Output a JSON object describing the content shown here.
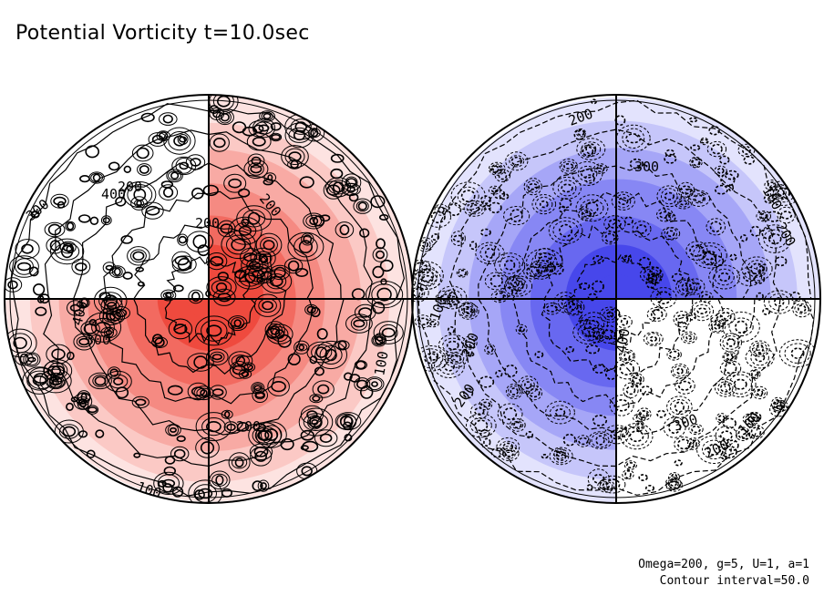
{
  "title": "Potential Vorticity t=10.0sec",
  "annotations": {
    "params": "Omega=200, g=5, U=1, a=1",
    "contour": "Contour interval=50.0"
  },
  "colors": {
    "red_scale": [
      "#ffffff",
      "#fde3e1",
      "#fbc9c5",
      "#f8aaa4",
      "#f58a82",
      "#f26a60",
      "#ef4a3e"
    ],
    "blue_scale": [
      "#ffffff",
      "#e3e3fd",
      "#c6c6fa",
      "#a6a6f7",
      "#8787f4",
      "#6868f0",
      "#4747eb"
    ],
    "lines": "#000000"
  },
  "hemispheres": [
    {
      "name": "left",
      "labels": [
        "100",
        "200",
        "300",
        "400",
        "200",
        "400",
        "300",
        "200",
        "100",
        "200",
        "100"
      ]
    },
    {
      "name": "right",
      "labels": [
        "200",
        "300",
        "100",
        "200",
        "100",
        "200",
        "200",
        "400",
        "300",
        "200",
        "100"
      ]
    }
  ]
}
